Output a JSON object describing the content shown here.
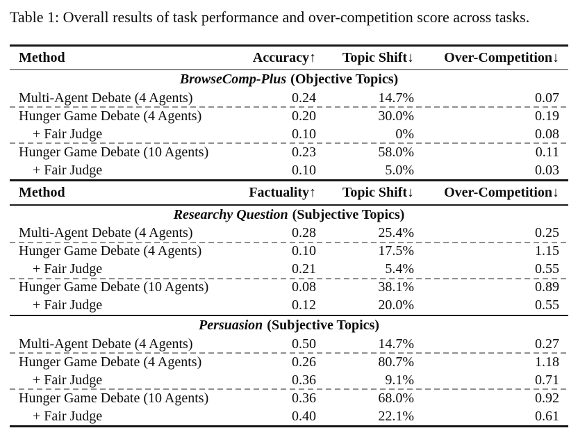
{
  "caption": "Table 1: Overall results of task performance and over-competition score across tasks.",
  "panels": [
    {
      "header": {
        "method": "Method",
        "col2": "Accuracy↑",
        "col3": "Topic Shift↓",
        "col4": "Over-Competition↓"
      },
      "section": {
        "name": "BrowseComp-Plus",
        "qualifier": "(Objective Topics)"
      },
      "rows": [
        {
          "method": "Multi-Agent Debate (4 Agents)",
          "col2": "0.24",
          "col3": "14.7%",
          "col4": "0.07"
        },
        {
          "method": "Hunger Game Debate (4 Agents)",
          "col2": "0.20",
          "col3": "30.0%",
          "col4": "0.19"
        },
        {
          "method": "+ Fair Judge",
          "col2": "0.10",
          "col3": "0%",
          "col4": "0.08"
        },
        {
          "method": "Hunger Game Debate (10 Agents)",
          "col2": "0.23",
          "col3": "58.0%",
          "col4": "0.11"
        },
        {
          "method": "+ Fair Judge",
          "col2": "0.10",
          "col3": "5.0%",
          "col4": "0.03"
        }
      ]
    },
    {
      "header": {
        "method": "Method",
        "col2": "Factuality↑",
        "col3": "Topic Shift↓",
        "col4": "Over-Competition↓"
      },
      "section": {
        "name": "Researchy Question",
        "qualifier": "(Subjective Topics)"
      },
      "rows": [
        {
          "method": "Multi-Agent Debate (4 Agents)",
          "col2": "0.28",
          "col3": "25.4%",
          "col4": "0.25"
        },
        {
          "method": "Hunger Game Debate (4 Agents)",
          "col2": "0.10",
          "col3": "17.5%",
          "col4": "1.15"
        },
        {
          "method": "+ Fair Judge",
          "col2": "0.21",
          "col3": "5.4%",
          "col4": "0.55"
        },
        {
          "method": "Hunger Game Debate (10 Agents)",
          "col2": "0.08",
          "col3": "38.1%",
          "col4": "0.89"
        },
        {
          "method": "+ Fair Judge",
          "col2": "0.12",
          "col3": "20.0%",
          "col4": "0.55"
        }
      ]
    },
    {
      "section": {
        "name": "Persuasion",
        "qualifier": "(Subjective Topics)"
      },
      "rows": [
        {
          "method": "Multi-Agent Debate (4 Agents)",
          "col2": "0.50",
          "col3": "14.7%",
          "col4": "0.27"
        },
        {
          "method": "Hunger Game Debate (4 Agents)",
          "col2": "0.26",
          "col3": "80.7%",
          "col4": "1.18"
        },
        {
          "method": "+ Fair Judge",
          "col2": "0.36",
          "col3": "9.1%",
          "col4": "0.71"
        },
        {
          "method": "Hunger Game Debate (10 Agents)",
          "col2": "0.36",
          "col3": "68.0%",
          "col4": "0.92"
        },
        {
          "method": "+ Fair Judge",
          "col2": "0.40",
          "col3": "22.1%",
          "col4": "0.61"
        }
      ]
    }
  ]
}
